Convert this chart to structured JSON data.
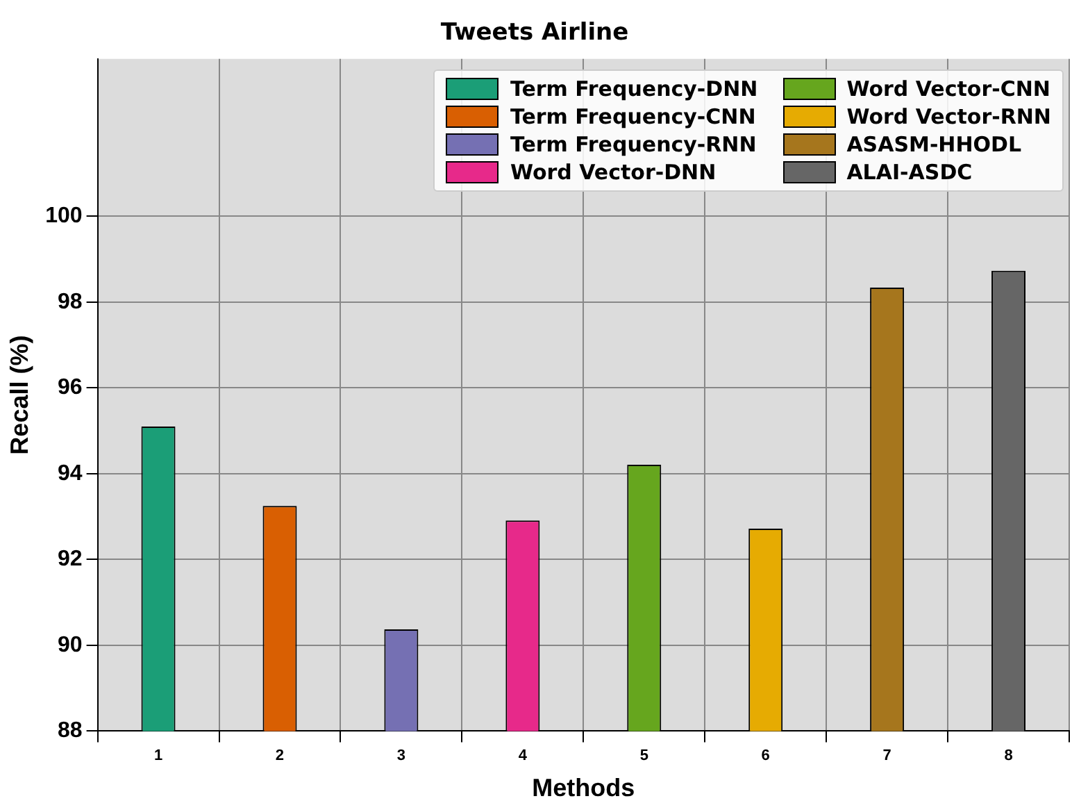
{
  "chart_data": {
    "type": "bar",
    "title": "Tweets Airline",
    "xlabel": "Methods",
    "ylabel": "Recall (%)",
    "categories": [
      "1",
      "2",
      "3",
      "4",
      "5",
      "6",
      "7",
      "8"
    ],
    "series": [
      {
        "name": "Term Frequency-DNN",
        "color": "#1b9e77",
        "values": [
          95.1,
          null,
          null,
          null,
          null,
          null,
          null,
          null
        ]
      },
      {
        "name": "Term Frequency-CNN",
        "color": "#d95f02",
        "values": [
          null,
          93.25,
          null,
          null,
          null,
          null,
          null,
          null
        ]
      },
      {
        "name": "Term Frequency-RNN",
        "color": "#7570b3",
        "values": [
          null,
          null,
          90.37,
          null,
          null,
          null,
          null,
          null
        ]
      },
      {
        "name": "Word Vector-DNN",
        "color": "#e7298a",
        "values": [
          null,
          null,
          null,
          92.91,
          null,
          null,
          null,
          null
        ]
      },
      {
        "name": "Word Vector-CNN",
        "color": "#66a61e",
        "values": [
          null,
          null,
          null,
          null,
          94.21,
          null,
          null,
          null
        ]
      },
      {
        "name": "Word Vector-RNN",
        "color": "#e6ab02",
        "values": [
          null,
          null,
          null,
          null,
          null,
          92.72,
          null,
          null
        ]
      },
      {
        "name": "ASASM-HHODL",
        "color": "#a6761d",
        "values": [
          null,
          null,
          null,
          null,
          null,
          null,
          98.34,
          null
        ]
      },
      {
        "name": "ALAI-ASDC",
        "color": "#666666",
        "values": [
          null,
          null,
          null,
          null,
          null,
          null,
          null,
          98.73
        ]
      }
    ],
    "ylim": [
      88,
      103.67
    ],
    "yticks": [
      88,
      90,
      92,
      94,
      96,
      98,
      100
    ],
    "grid": true,
    "legend": "top right"
  }
}
